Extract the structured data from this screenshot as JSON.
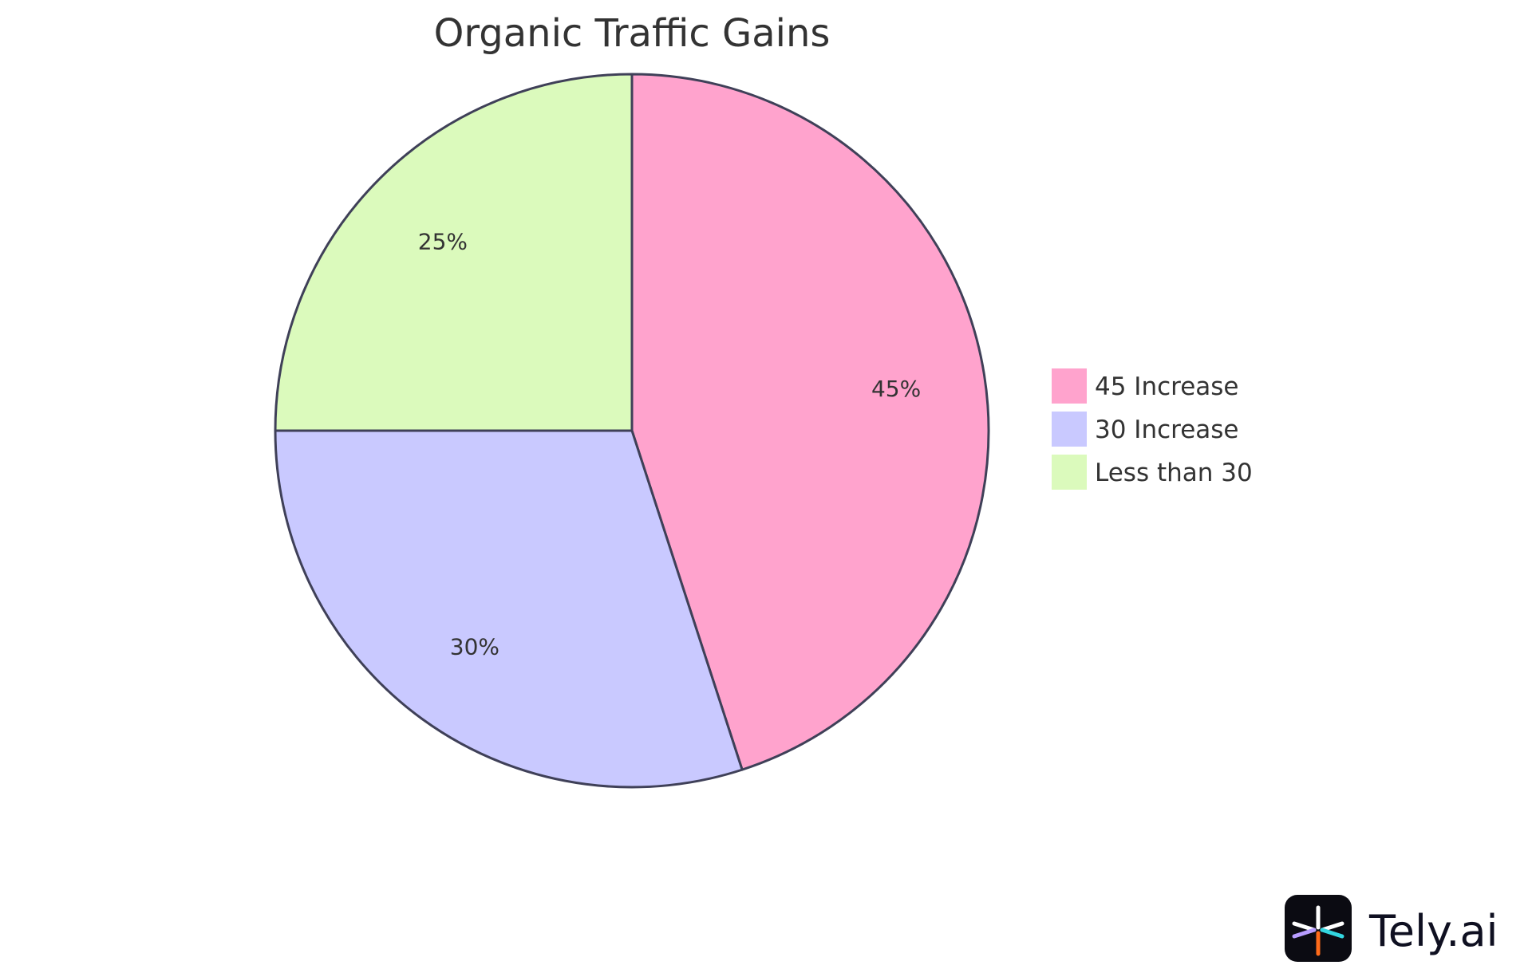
{
  "chart_data": {
    "type": "pie",
    "title": "Organic Traffic Gains",
    "categories": [
      "45 Increase",
      "30 Increase",
      "Less than 30"
    ],
    "values": [
      45,
      30,
      25
    ],
    "value_labels": [
      "45%",
      "30%",
      "25%"
    ],
    "colors": [
      "#ffa3cd",
      "#c9c9ff",
      "#dbfabc"
    ],
    "stroke_color": "#3f4058",
    "start_angle_deg": 0,
    "direction": "clockwise",
    "legend_position": "right"
  },
  "branding": {
    "logo_text": "Tely.ai",
    "logo_icon": "tely-logo-icon"
  }
}
